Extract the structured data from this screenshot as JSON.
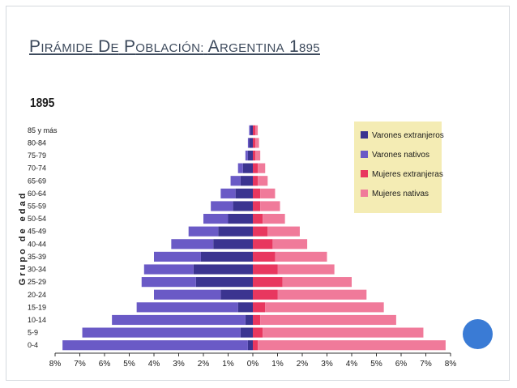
{
  "slide": {
    "title": "Pirámide de población: Argentina 1895"
  },
  "chart_data": {
    "type": "bar",
    "orientation": "horizontal-population-pyramid",
    "title": "1895",
    "ylabel": "Grupo de edad",
    "categories": [
      "0-4",
      "5-9",
      "10-14",
      "15-19",
      "20-24",
      "25-29",
      "30-34",
      "35-39",
      "40-44",
      "45-49",
      "50-54",
      "55-59",
      "60-64",
      "65-69",
      "70-74",
      "75-79",
      "80-84",
      "85 y más"
    ],
    "x_tick_labels": [
      "8%",
      "7%",
      "6%",
      "5%",
      "4%",
      "3%",
      "2%",
      "1%",
      "0%",
      "1%",
      "2%",
      "3%",
      "4%",
      "5%",
      "6%",
      "7%",
      "8%"
    ],
    "xlim": [
      -8,
      8
    ],
    "series": [
      {
        "name": "Varones extranjeros",
        "side": "left",
        "color": "#3b3490",
        "values": [
          0.2,
          0.5,
          0.3,
          0.6,
          1.3,
          2.3,
          2.4,
          2.1,
          1.6,
          1.4,
          1.0,
          0.8,
          0.7,
          0.5,
          0.4,
          0.2,
          0.15,
          0.1
        ]
      },
      {
        "name": "Varones nativos",
        "side": "left",
        "color": "#6a5ac6",
        "values": [
          7.5,
          6.4,
          5.4,
          4.1,
          2.7,
          2.2,
          2.0,
          1.9,
          1.7,
          1.2,
          1.0,
          0.9,
          0.6,
          0.4,
          0.2,
          0.1,
          0.05,
          0.05
        ]
      },
      {
        "name": "Mujeres extranjeras",
        "side": "right",
        "color": "#e8375f",
        "values": [
          0.2,
          0.4,
          0.3,
          0.5,
          1.0,
          1.2,
          1.0,
          0.9,
          0.8,
          0.6,
          0.4,
          0.3,
          0.3,
          0.2,
          0.2,
          0.1,
          0.1,
          0.1
        ]
      },
      {
        "name": "Mujeres nativas",
        "side": "right",
        "color": "#f07a9a",
        "values": [
          7.6,
          6.5,
          5.5,
          4.8,
          3.6,
          2.8,
          2.3,
          2.1,
          1.4,
          1.3,
          0.9,
          0.8,
          0.6,
          0.4,
          0.3,
          0.2,
          0.15,
          0.1
        ]
      }
    ],
    "legend": {
      "position": "top-right",
      "background": "#f4ecb4",
      "entries": [
        "Varones extranjeros",
        "Varones nativos",
        "Mujeres extranjeras",
        "Mujeres nativas"
      ]
    },
    "grid": false
  },
  "decor": {
    "circle_color": "#3a7bd5"
  }
}
